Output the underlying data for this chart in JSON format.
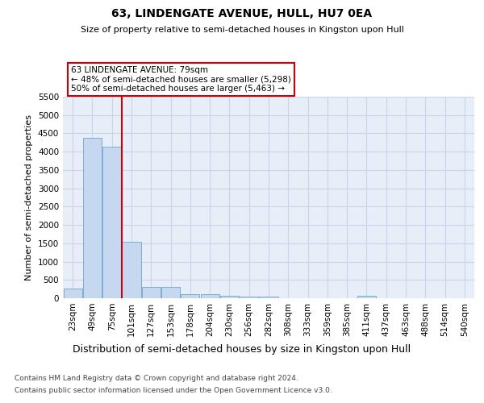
{
  "title": "63, LINDENGATE AVENUE, HULL, HU7 0EA",
  "subtitle": "Size of property relative to semi-detached houses in Kingston upon Hull",
  "xlabel": "Distribution of semi-detached houses by size in Kingston upon Hull",
  "ylabel": "Number of semi-detached properties",
  "footer_line1": "Contains HM Land Registry data © Crown copyright and database right 2024.",
  "footer_line2": "Contains public sector information licensed under the Open Government Licence v3.0.",
  "bar_labels": [
    "23sqm",
    "49sqm",
    "75sqm",
    "101sqm",
    "127sqm",
    "153sqm",
    "178sqm",
    "204sqm",
    "230sqm",
    "256sqm",
    "282sqm",
    "308sqm",
    "333sqm",
    "359sqm",
    "385sqm",
    "411sqm",
    "437sqm",
    "463sqm",
    "488sqm",
    "514sqm",
    "540sqm"
  ],
  "bar_values": [
    270,
    4380,
    4130,
    1540,
    310,
    310,
    120,
    100,
    60,
    55,
    55,
    0,
    0,
    0,
    0,
    60,
    0,
    0,
    0,
    0,
    0
  ],
  "bar_color": "#c5d8f0",
  "bar_edgecolor": "#7aaed4",
  "property_label": "63 LINDENGATE AVENUE: 79sqm",
  "pct_smaller": 48,
  "n_smaller": 5298,
  "pct_larger": 50,
  "n_larger": 5463,
  "vline_color": "#cc0000",
  "vline_x": 2.5,
  "annotation_box_edgecolor": "#cc0000",
  "annotation_box_facecolor": "#ffffff",
  "ylim": [
    0,
    5500
  ],
  "yticks": [
    0,
    500,
    1000,
    1500,
    2000,
    2500,
    3000,
    3500,
    4000,
    4500,
    5000,
    5500
  ],
  "grid_color": "#c8d4e8",
  "plot_background": "#e8eef8",
  "title_fontsize": 10,
  "subtitle_fontsize": 8,
  "ylabel_fontsize": 8,
  "xlabel_fontsize": 9,
  "tick_fontsize": 7.5,
  "ann_fontsize": 7.5,
  "footer_fontsize": 6.5
}
